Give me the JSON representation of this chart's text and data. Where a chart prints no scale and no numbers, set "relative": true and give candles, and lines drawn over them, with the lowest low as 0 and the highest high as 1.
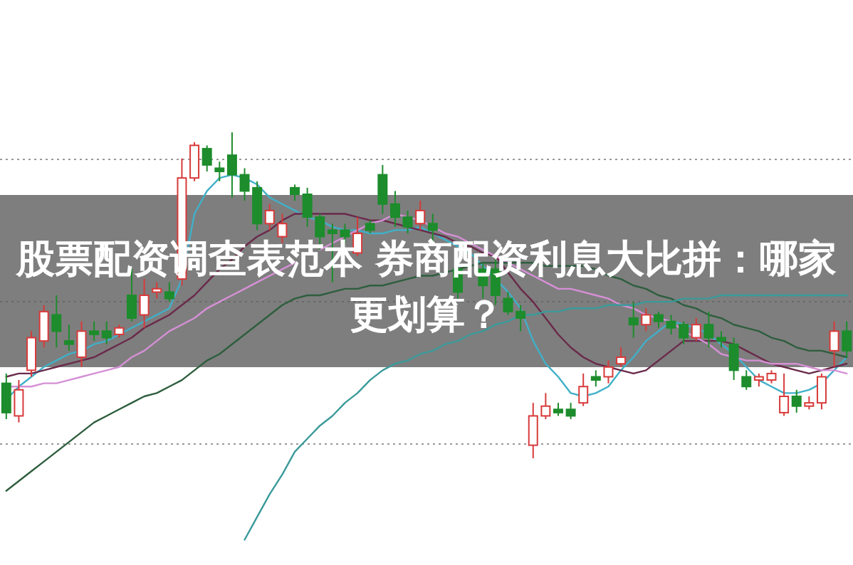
{
  "chart_data": {
    "type": "candlestick",
    "title": "股票配资调查表范本 券商配资利息大比拼：哪家更划算？",
    "relative": true,
    "grid": "y",
    "categories": [
      null,
      null,
      null,
      null,
      null,
      null,
      null,
      null,
      null,
      null,
      null,
      null,
      null,
      null,
      null,
      null,
      null,
      null,
      null,
      null,
      null,
      null,
      null,
      null,
      null,
      null,
      null,
      null,
      null,
      null,
      null,
      null,
      null,
      null,
      null,
      null,
      null,
      null,
      null,
      null,
      null,
      null,
      null,
      null,
      null,
      null,
      null,
      null,
      null,
      null,
      null,
      null,
      null,
      null,
      null,
      null,
      null,
      null,
      null,
      null,
      null,
      null,
      null,
      null,
      null,
      null,
      null,
      null
    ],
    "ohlc": [
      [
        0.23,
        0.26,
        0.12,
        0.14
      ],
      [
        0.13,
        0.24,
        0.11,
        0.21
      ],
      [
        0.27,
        0.39,
        0.25,
        0.37
      ],
      [
        0.36,
        0.47,
        0.34,
        0.45
      ],
      [
        0.44,
        0.5,
        0.34,
        0.39
      ],
      [
        0.36,
        0.41,
        0.33,
        0.35
      ],
      [
        0.31,
        0.42,
        0.28,
        0.39
      ],
      [
        0.39,
        0.42,
        0.36,
        0.38
      ],
      [
        0.39,
        0.42,
        0.35,
        0.37
      ],
      [
        0.38,
        0.41,
        0.37,
        0.4
      ],
      [
        0.5,
        0.58,
        0.42,
        0.43
      ],
      [
        0.44,
        0.55,
        0.4,
        0.5
      ],
      [
        0.51,
        0.54,
        0.49,
        0.52
      ],
      [
        0.51,
        0.54,
        0.48,
        0.49
      ],
      [
        0.55,
        0.92,
        0.53,
        0.86
      ],
      [
        0.86,
        0.97,
        0.85,
        0.96
      ],
      [
        0.95,
        0.96,
        0.88,
        0.9
      ],
      [
        0.89,
        0.91,
        0.85,
        0.88
      ],
      [
        0.93,
        1,
        0.8,
        0.87
      ],
      [
        0.87,
        0.89,
        0.79,
        0.82
      ],
      [
        0.83,
        0.85,
        0.7,
        0.72
      ],
      [
        0.72,
        0.78,
        0.7,
        0.76
      ],
      [
        0.68,
        0.75,
        0.66,
        0.72
      ],
      [
        0.83,
        0.84,
        0.79,
        0.81
      ],
      [
        0.81,
        0.83,
        0.71,
        0.74
      ],
      [
        0.74,
        0.75,
        0.64,
        0.68
      ],
      [
        0.7,
        0.72,
        0.54,
        0.69
      ],
      [
        0.7,
        0.72,
        0.66,
        0.68
      ],
      [
        0.63,
        0.74,
        0.62,
        0.69
      ],
      [
        0.72,
        0.73,
        0.69,
        0.7
      ],
      [
        0.87,
        0.9,
        0.75,
        0.78
      ],
      [
        0.78,
        0.82,
        0.71,
        0.74
      ],
      [
        0.74,
        0.76,
        0.69,
        0.71
      ],
      [
        0.72,
        0.79,
        0.7,
        0.76
      ],
      [
        0.72,
        0.75,
        0.66,
        0.7
      ],
      null,
      [
        0.58,
        0.6,
        0.49,
        0.51
      ],
      null,
      [
        0.58,
        0.6,
        0.49,
        0.53
      ],
      [
        0.58,
        0.61,
        0.47,
        0.5
      ],
      [
        0.49,
        0.51,
        0.44,
        0.45
      ],
      [
        0.45,
        0.47,
        0.39,
        0.43
      ],
      [
        0.04,
        0.17,
        0,
        0.13
      ],
      [
        0.13,
        0.2,
        0.12,
        0.16
      ],
      [
        0.15,
        0.17,
        0.13,
        0.14
      ],
      [
        0.15,
        0.17,
        0.12,
        0.13
      ],
      [
        0.17,
        0.26,
        0.16,
        0.22
      ],
      [
        0.25,
        0.27,
        0.22,
        0.24
      ],
      [
        0.25,
        0.3,
        0.23,
        0.28
      ],
      [
        0.29,
        0.34,
        0.28,
        0.31
      ],
      [
        0.43,
        0.48,
        0.37,
        0.41
      ],
      [
        0.41,
        0.46,
        0.39,
        0.44
      ],
      [
        0.44,
        0.45,
        0.4,
        0.42
      ],
      [
        0.42,
        0.44,
        0.38,
        0.4
      ],
      [
        0.41,
        0.42,
        0.35,
        0.37
      ],
      [
        0.37,
        0.43,
        0.36,
        0.41
      ],
      [
        0.41,
        0.45,
        0.34,
        0.37
      ],
      [
        0.37,
        0.39,
        0.34,
        0.36
      ],
      [
        0.35,
        0.37,
        0.24,
        0.27
      ],
      [
        0.25,
        0.27,
        0.21,
        0.22
      ],
      [
        0.24,
        0.26,
        0.22,
        0.25
      ],
      [
        0.24,
        0.27,
        0.23,
        0.26
      ],
      [
        0.14,
        0.26,
        0.13,
        0.19
      ],
      [
        0.19,
        0.21,
        0.14,
        0.16
      ],
      [
        0.16,
        0.19,
        0.15,
        0.17
      ],
      [
        0.17,
        0.26,
        0.15,
        0.25
      ],
      [
        0.33,
        0.42,
        0.28,
        0.39
      ],
      [
        0.39,
        0.42,
        0.31,
        0.33
      ]
    ],
    "series": [
      {
        "type": "line",
        "color": "#40b0c8",
        "values": [
          0.18,
          0.22,
          0.25,
          0.28,
          0.3,
          0.32,
          0.33,
          0.35,
          0.36,
          0.38,
          0.4,
          0.42,
          0.44,
          0.46,
          0.55,
          0.75,
          0.82,
          0.86,
          0.87,
          0.86,
          0.84,
          0.8,
          0.78,
          0.76,
          0.74,
          0.73,
          0.71,
          0.7,
          0.7,
          0.69,
          0.69,
          0.7,
          0.7,
          0.71,
          0.69,
          0.67,
          0.65,
          0.63,
          0.59,
          0.55,
          0.51,
          0.46,
          0.36,
          0.29,
          0.25,
          0.2,
          0.19,
          0.2,
          0.22,
          0.27,
          0.31,
          0.36,
          0.39,
          0.42,
          0.41,
          0.4,
          0.38,
          0.35,
          0.32,
          0.28,
          0.24,
          0.22,
          0.2,
          0.2,
          0.21,
          0.23,
          0.27,
          0.31
        ]
      },
      {
        "type": "line",
        "color": "#6a2a4a",
        "values": [
          0.25,
          0.26,
          0.26,
          0.27,
          0.28,
          0.29,
          0.3,
          0.31,
          0.33,
          0.35,
          0.37,
          0.4,
          0.42,
          0.44,
          0.47,
          0.5,
          0.54,
          0.58,
          0.61,
          0.65,
          0.68,
          0.7,
          0.73,
          0.75,
          0.75,
          0.75,
          0.75,
          0.75,
          0.74,
          0.73,
          0.73,
          0.72,
          0.71,
          0.7,
          0.69,
          0.68,
          0.66,
          0.65,
          0.63,
          0.62,
          0.57,
          0.52,
          0.48,
          0.43,
          0.38,
          0.34,
          0.31,
          0.29,
          0.28,
          0.27,
          0.26,
          0.27,
          0.3,
          0.33,
          0.36,
          0.36,
          0.36,
          0.36,
          0.35,
          0.33,
          0.31,
          0.29,
          0.28,
          0.27,
          0.26,
          0.27,
          0.28,
          0.29
        ]
      },
      {
        "type": "line",
        "color": "#d690d6",
        "values": [
          0.22,
          0.22,
          0.22,
          0.23,
          0.23,
          0.24,
          0.25,
          0.26,
          0.27,
          0.28,
          0.31,
          0.33,
          0.36,
          0.39,
          0.41,
          0.43,
          0.46,
          0.48,
          0.5,
          0.52,
          0.54,
          0.56,
          0.58,
          0.6,
          null,
          0.64,
          0.66,
          0.68,
          0.7,
          0.72,
          0.73,
          0.75,
          0.74,
          0.73,
          0.71,
          0.69,
          0.68,
          0.66,
          0.64,
          0.62,
          0.6,
          0.58,
          0.56,
          0.54,
          0.52,
          0.52,
          0.51,
          0.5,
          0.49,
          0.47,
          0.46,
          0.44,
          0.43,
          0.42,
          0.39,
          0.37,
          0.35,
          0.32,
          0.31,
          0.3,
          0.3,
          0.29,
          0.29,
          0.29,
          0.28,
          0.27,
          0.27,
          0.26
        ]
      },
      {
        "type": "line",
        "color": "#2e5e3e",
        "values": [
          -0.1,
          -0.07,
          -0.04,
          -0.01,
          0.02,
          0.05,
          0.08,
          0.11,
          0.13,
          0.15,
          0.17,
          0.19,
          0.2,
          0.22,
          0.24,
          0.27,
          0.3,
          0.32,
          0.35,
          0.38,
          0.41,
          0.44,
          0.47,
          0.49,
          0.5,
          0.5,
          0.51,
          0.52,
          0.52,
          0.53,
          0.53,
          0.54,
          0.55,
          0.56,
          0.56,
          0.57,
          0.58,
          0.59,
          0.6,
          0.6,
          0.6,
          0.6,
          0.6,
          0.59,
          0.59,
          0.59,
          0.59,
          0.58,
          0.56,
          0.55,
          0.53,
          0.52,
          0.5,
          0.49,
          0.47,
          0.46,
          0.44,
          0.43,
          0.41,
          0.4,
          0.39,
          0.37,
          0.36,
          0.34,
          0.33,
          0.33,
          0.32,
          0.31
        ]
      },
      {
        "type": "line",
        "color": "#3a9a9a",
        "values": [
          null,
          null,
          null,
          null,
          null,
          null,
          null,
          null,
          null,
          null,
          null,
          null,
          null,
          null,
          null,
          null,
          null,
          null,
          null,
          -0.25,
          -0.18,
          -0.11,
          -0.05,
          0.02,
          0.06,
          0.1,
          0.13,
          0.17,
          0.2,
          0.24,
          0.27,
          0.29,
          0.3,
          0.32,
          0.33,
          0.35,
          0.36,
          0.38,
          0.39,
          0.41,
          0.42,
          0.44,
          0.44,
          0.45,
          0.45,
          0.46,
          0.46,
          0.46,
          0.47,
          0.47,
          0.47,
          0.48,
          0.48,
          0.48,
          0.49,
          0.49,
          0.49,
          0.5,
          0.5,
          0.5,
          0.5,
          0.5,
          0.5,
          0.5,
          0.5,
          0.5,
          0.5,
          0.5
        ]
      }
    ]
  }
}
